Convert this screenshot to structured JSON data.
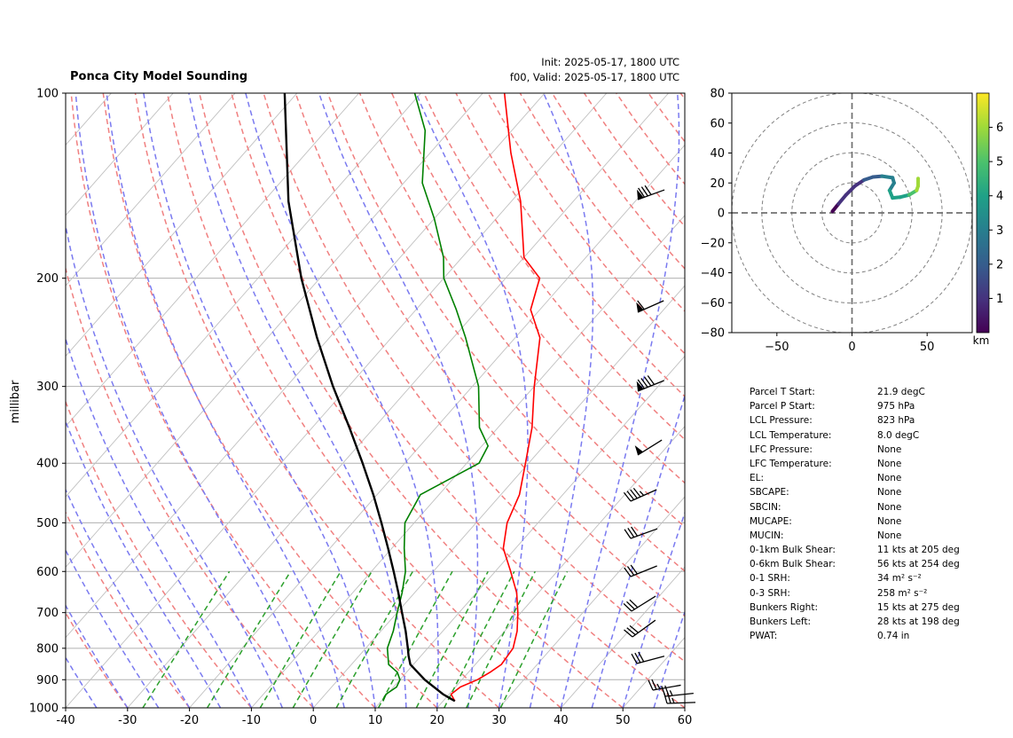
{
  "header": {
    "title": "Ponca City Model Sounding",
    "init": "Init: 2025-05-17, 1800 UTC",
    "valid": "f00, Valid: 2025-05-17, 1800 UTC"
  },
  "chart_data": [
    {
      "type": "line",
      "kind": "skew-t log-p sounding",
      "ylabel": "millibar",
      "xlabel": "",
      "xlim": [
        -40,
        60
      ],
      "ylim": [
        1000,
        100
      ],
      "y_scale": "log (inverted)",
      "xticks": [
        -40,
        -30,
        -20,
        -10,
        0,
        10,
        20,
        30,
        40,
        50,
        60
      ],
      "yticks": [
        100,
        200,
        300,
        400,
        500,
        600,
        700,
        800,
        900,
        1000
      ],
      "grid": "horizontal isobars",
      "series": [
        {
          "role": "temperature",
          "color": "#ff0000",
          "points": [
            [
              975,
              21.9
            ],
            [
              950,
              20.3
            ],
            [
              925,
              20.8
            ],
            [
              900,
              22.5
            ],
            [
              875,
              23.5
            ],
            [
              850,
              24.2
            ],
            [
              800,
              23.8
            ],
            [
              750,
              22.0
            ],
            [
              700,
              19.5
            ],
            [
              650,
              16.5
            ],
            [
              600,
              12.5
            ],
            [
              550,
              8.0
            ],
            [
              500,
              5.0
            ],
            [
              450,
              3.0
            ],
            [
              400,
              -0.5
            ],
            [
              350,
              -4.5
            ],
            [
              300,
              -10.0
            ],
            [
              250,
              -16.0
            ],
            [
              225,
              -21.5
            ],
            [
              200,
              -24.5
            ],
            [
              185,
              -30.0
            ],
            [
              150,
              -38.5
            ],
            [
              125,
              -47.0
            ],
            [
              100,
              -56.5
            ]
          ]
        },
        {
          "role": "dewpoint",
          "color": "#008000",
          "points": [
            [
              975,
              10.3
            ],
            [
              950,
              9.8
            ],
            [
              925,
              10.5
            ],
            [
              900,
              10.0
            ],
            [
              875,
              8.5
            ],
            [
              850,
              6.0
            ],
            [
              800,
              3.5
            ],
            [
              750,
              2.0
            ],
            [
              700,
              0.0
            ],
            [
              650,
              -2.0
            ],
            [
              600,
              -4.5
            ],
            [
              550,
              -8.0
            ],
            [
              500,
              -11.5
            ],
            [
              450,
              -13.0
            ],
            [
              400,
              -8.0
            ],
            [
              375,
              -9.0
            ],
            [
              350,
              -13.0
            ],
            [
              300,
              -19.0
            ],
            [
              250,
              -28.0
            ],
            [
              225,
              -33.5
            ],
            [
              200,
              -40.0
            ],
            [
              185,
              -43.0
            ],
            [
              160,
              -50.0
            ],
            [
              140,
              -57.0
            ],
            [
              115,
              -64.0
            ],
            [
              100,
              -71.0
            ]
          ]
        },
        {
          "role": "parcel profile",
          "color": "#000000",
          "points": [
            [
              975,
              21.9
            ],
            [
              950,
              19.0
            ],
            [
              900,
              14.0
            ],
            [
              850,
              9.5
            ],
            [
              823,
              8.0
            ],
            [
              800,
              6.8
            ],
            [
              750,
              4.0
            ],
            [
              700,
              0.8
            ],
            [
              650,
              -2.6
            ],
            [
              600,
              -6.4
            ],
            [
              550,
              -10.6
            ],
            [
              500,
              -15.3
            ],
            [
              450,
              -20.6
            ],
            [
              400,
              -26.8
            ],
            [
              350,
              -34.0
            ],
            [
              300,
              -42.5
            ],
            [
              250,
              -52.0
            ],
            [
              200,
              -63.0
            ],
            [
              150,
              -76.0
            ],
            [
              100,
              -92.0
            ]
          ]
        }
      ]
    },
    {
      "type": "line",
      "kind": "hodograph",
      "xlim": [
        -80,
        80
      ],
      "ylim": [
        -80,
        80
      ],
      "xticks": [
        -50,
        0,
        50
      ],
      "yticks": [
        -80,
        -60,
        -40,
        -20,
        0,
        20,
        40,
        60,
        80
      ],
      "colorbar": {
        "label": "km",
        "ticks": [
          1,
          2,
          3,
          4,
          5,
          6
        ],
        "range": [
          0,
          7
        ]
      },
      "points": [
        [
          -13,
          1,
          0.0
        ],
        [
          -9,
          6,
          0.4
        ],
        [
          -4,
          12,
          0.8
        ],
        [
          2,
          18,
          1.2
        ],
        [
          8,
          22,
          1.6
        ],
        [
          14,
          24,
          2.0
        ],
        [
          20,
          24.5,
          2.3
        ],
        [
          27,
          23.5,
          2.7
        ],
        [
          28,
          20,
          3.0
        ],
        [
          25,
          15,
          3.3
        ],
        [
          27,
          10,
          3.7
        ],
        [
          32,
          10.5,
          4.1
        ],
        [
          38,
          12,
          4.6
        ],
        [
          43,
          15,
          5.3
        ],
        [
          44,
          18,
          6.0
        ],
        [
          44,
          23,
          6.8
        ]
      ]
    }
  ],
  "stats": [
    {
      "label": "Parcel T Start:",
      "value": "21.9 degC"
    },
    {
      "label": "Parcel P Start:",
      "value": "975 hPa"
    },
    {
      "label": "LCL Pressure:",
      "value": "823 hPa"
    },
    {
      "label": "LCL Temperature:",
      "value": "8.0 degC"
    },
    {
      "label": "LFC Pressure:",
      "value": "None"
    },
    {
      "label": "LFC Temperature:",
      "value": "None"
    },
    {
      "label": "EL:",
      "value": "None"
    },
    {
      "label": "SBCAPE:",
      "value": "None"
    },
    {
      "label": "SBCIN:",
      "value": "None"
    },
    {
      "label": "MUCAPE:",
      "value": "None"
    },
    {
      "label": "MUCIN:",
      "value": "None"
    },
    {
      "label": "0-1km Bulk Shear:",
      "value": "11 kts at 205 deg"
    },
    {
      "label": "0-6km Bulk Shear:",
      "value": "56 kts at 254 deg"
    },
    {
      "label": "0-1 SRH:",
      "value": "34 m² s⁻²"
    },
    {
      "label": "0-3 SRH:",
      "value": "258 m² s⁻²"
    },
    {
      "label": "Bunkers Right:",
      "value": "15 kts at 275 deg"
    },
    {
      "label": "Bunkers Left:",
      "value": "28 kts at 198 deg"
    },
    {
      "label": "PWAT:",
      "value": "0.74 in"
    }
  ]
}
